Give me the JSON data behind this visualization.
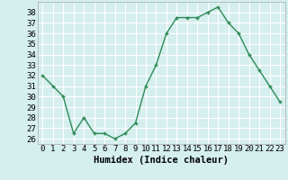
{
  "x": [
    0,
    1,
    2,
    3,
    4,
    5,
    6,
    7,
    8,
    9,
    10,
    11,
    12,
    13,
    14,
    15,
    16,
    17,
    18,
    19,
    20,
    21,
    22,
    23
  ],
  "y": [
    32,
    31,
    30,
    26.5,
    28,
    26.5,
    26.5,
    26,
    26.5,
    27.5,
    31,
    33,
    36,
    37.5,
    37.5,
    37.5,
    38,
    38.5,
    37,
    36,
    34,
    32.5,
    31,
    29.5
  ],
  "line_color": "#2d8b57",
  "marker": "+",
  "background_color": "#d5eeee",
  "grid_color": "#ffffff",
  "xlabel": "Humidex (Indice chaleur)",
  "ylim": [
    25.5,
    39.0
  ],
  "xlim": [
    -0.5,
    23.5
  ],
  "yticks": [
    26,
    27,
    28,
    29,
    30,
    31,
    32,
    33,
    34,
    35,
    36,
    37,
    38
  ],
  "xticks": [
    0,
    1,
    2,
    3,
    4,
    5,
    6,
    7,
    8,
    9,
    10,
    11,
    12,
    13,
    14,
    15,
    16,
    17,
    18,
    19,
    20,
    21,
    22,
    23
  ],
  "tick_label_fontsize": 6.5,
  "xlabel_fontsize": 7.5,
  "line_width": 1.0,
  "marker_size": 3.5,
  "marker_edge_width": 1.0
}
